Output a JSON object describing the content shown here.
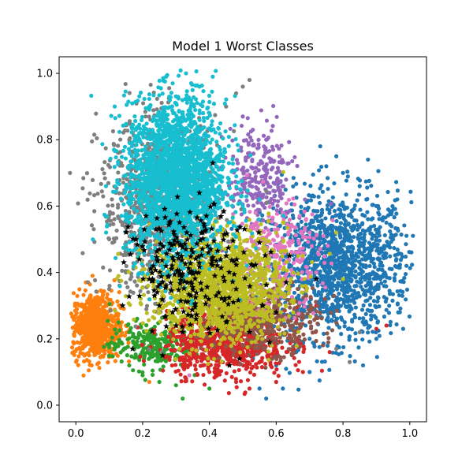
{
  "chart_data": {
    "type": "scatter",
    "title": "Model 1 Worst Classes",
    "xlabel": "",
    "ylabel": "",
    "xlim": [
      -0.05,
      1.05
    ],
    "ylim": [
      -0.05,
      1.05
    ],
    "xticks": [
      "0.0",
      "0.2",
      "0.4",
      "0.6",
      "0.8",
      "1.0"
    ],
    "yticks": [
      "0.0",
      "0.2",
      "0.4",
      "0.6",
      "0.8",
      "1.0"
    ],
    "grid": false,
    "legend": "none",
    "series": [
      {
        "color": "#1f77b4",
        "marker": "circle",
        "center": [
          0.78,
          0.42
        ],
        "spread": [
          0.11,
          0.11
        ],
        "points": [
          [
            0.99,
            0.42
          ],
          [
            0.98,
            0.23
          ],
          [
            0.96,
            0.44
          ],
          [
            0.95,
            0.5
          ],
          [
            0.93,
            0.55
          ],
          [
            0.92,
            0.45
          ],
          [
            0.9,
            0.6
          ],
          [
            0.87,
            0.62
          ],
          [
            0.85,
            0.66
          ],
          [
            0.82,
            0.3
          ],
          [
            0.8,
            0.7
          ],
          [
            0.78,
            0.75
          ],
          [
            0.75,
            0.72
          ],
          [
            0.72,
            0.27
          ],
          [
            0.7,
            0.2
          ],
          [
            0.66,
            0.16
          ],
          [
            0.6,
            0.12
          ],
          [
            0.55,
            0.05
          ],
          [
            0.57,
            0.02
          ],
          [
            0.62,
            0.05
          ],
          [
            0.7,
            0.1
          ],
          [
            0.86,
            0.12
          ],
          [
            0.9,
            0.2
          ],
          [
            0.88,
            0.35
          ]
        ]
      },
      {
        "color": "#ff7f0e",
        "marker": "circle",
        "center": [
          0.06,
          0.24
        ],
        "spread": [
          0.035,
          0.05
        ],
        "points": [
          [
            0.0,
            0.24
          ],
          [
            0.01,
            0.3
          ],
          [
            0.03,
            0.37
          ],
          [
            0.05,
            0.39
          ],
          [
            0.12,
            0.2
          ],
          [
            0.15,
            0.24
          ],
          [
            0.04,
            0.15
          ],
          [
            0.1,
            0.16
          ],
          [
            0.22,
            0.07
          ]
        ]
      },
      {
        "color": "#2ca02c",
        "marker": "circle",
        "center": [
          0.22,
          0.18
        ],
        "spread": [
          0.06,
          0.035
        ],
        "points": [
          [
            0.16,
            0.12
          ],
          [
            0.2,
            0.09
          ],
          [
            0.25,
            0.07
          ],
          [
            0.3,
            0.06
          ],
          [
            0.32,
            0.02
          ],
          [
            0.4,
            0.05
          ],
          [
            0.16,
            0.22
          ],
          [
            0.13,
            0.19
          ]
        ]
      },
      {
        "color": "#d62728",
        "marker": "circle",
        "center": [
          0.45,
          0.19
        ],
        "spread": [
          0.09,
          0.05
        ],
        "points": [
          [
            0.33,
            0.08
          ],
          [
            0.4,
            0.1
          ],
          [
            0.48,
            0.07
          ],
          [
            0.52,
            0.05
          ],
          [
            0.6,
            0.07
          ],
          [
            0.68,
            0.1
          ],
          [
            0.76,
            0.16
          ],
          [
            0.9,
            0.23
          ],
          [
            0.93,
            0.24
          ],
          [
            0.72,
            0.3
          ]
        ]
      },
      {
        "color": "#9467bd",
        "marker": "circle",
        "center": [
          0.55,
          0.68
        ],
        "spread": [
          0.05,
          0.08
        ],
        "points": [
          [
            0.5,
            0.87
          ],
          [
            0.53,
            0.83
          ],
          [
            0.57,
            0.8
          ],
          [
            0.61,
            0.75
          ],
          [
            0.58,
            0.64
          ],
          [
            0.6,
            0.67
          ],
          [
            0.63,
            0.58
          ],
          [
            0.52,
            0.76
          ]
        ]
      },
      {
        "color": "#8c564b",
        "marker": "circle",
        "center": [
          0.55,
          0.26
        ],
        "spread": [
          0.09,
          0.05
        ],
        "points": [
          [
            0.4,
            0.3
          ],
          [
            0.48,
            0.22
          ],
          [
            0.6,
            0.2
          ],
          [
            0.66,
            0.22
          ],
          [
            0.7,
            0.25
          ]
        ]
      },
      {
        "color": "#e377c2",
        "marker": "circle",
        "center": [
          0.6,
          0.45
        ],
        "spread": [
          0.07,
          0.08
        ],
        "points": [
          [
            0.62,
            0.58
          ],
          [
            0.67,
            0.57
          ],
          [
            0.72,
            0.4
          ],
          [
            0.7,
            0.52
          ],
          [
            0.54,
            0.27
          ],
          [
            0.34,
            0.09
          ],
          [
            0.55,
            0.36
          ]
        ]
      },
      {
        "color": "#7f7f7f",
        "marker": "circle",
        "center": [
          0.25,
          0.6
        ],
        "spread": [
          0.09,
          0.13
        ],
        "points": [
          [
            0.52,
            0.98
          ],
          [
            0.48,
            0.94
          ],
          [
            0.5,
            0.96
          ],
          [
            0.45,
            0.9
          ],
          [
            0.4,
            0.88
          ],
          [
            0.14,
            0.55
          ],
          [
            0.1,
            0.5
          ],
          [
            0.12,
            0.64
          ],
          [
            0.16,
            0.8
          ],
          [
            0.22,
            0.82
          ],
          [
            0.1,
            0.35
          ],
          [
            0.15,
            0.4
          ],
          [
            0.78,
            0.17
          ],
          [
            0.82,
            0.13
          ],
          [
            0.85,
            0.22
          ]
        ]
      },
      {
        "color": "#bcbd22",
        "marker": "circle",
        "center": [
          0.43,
          0.36
        ],
        "spread": [
          0.1,
          0.08
        ],
        "points": [
          [
            0.3,
            0.22
          ],
          [
            0.37,
            0.28
          ],
          [
            0.46,
            0.32
          ],
          [
            0.5,
            0.38
          ],
          [
            0.56,
            0.4
          ],
          [
            0.6,
            0.52
          ],
          [
            0.62,
            0.55
          ],
          [
            0.68,
            0.45
          ],
          [
            0.78,
            0.52
          ],
          [
            0.8,
            0.38
          ]
        ]
      },
      {
        "color": "#17becf",
        "marker": "circle",
        "center": [
          0.3,
          0.68
        ],
        "spread": [
          0.075,
          0.12
        ],
        "points": [
          [
            0.33,
            1.0
          ],
          [
            0.29,
            0.97
          ],
          [
            0.41,
            0.99
          ],
          [
            0.37,
            0.96
          ],
          [
            0.28,
            0.93
          ],
          [
            0.3,
            0.91
          ],
          [
            0.22,
            0.9
          ],
          [
            0.18,
            0.83
          ],
          [
            0.19,
            0.82
          ],
          [
            0.3,
            0.45
          ],
          [
            0.4,
            0.41
          ],
          [
            0.5,
            0.6
          ],
          [
            0.55,
            0.62
          ]
        ]
      },
      {
        "color": "#000000",
        "marker": "star",
        "center": [
          0.35,
          0.42
        ],
        "spread": [
          0.07,
          0.07
        ],
        "points": [
          [
            0.41,
            0.73
          ],
          [
            0.37,
            0.64
          ],
          [
            0.21,
            0.57
          ],
          [
            0.24,
            0.53
          ],
          [
            0.18,
            0.5
          ],
          [
            0.28,
            0.55
          ],
          [
            0.33,
            0.47
          ],
          [
            0.38,
            0.52
          ],
          [
            0.45,
            0.45
          ],
          [
            0.53,
            0.42
          ],
          [
            0.22,
            0.38
          ],
          [
            0.25,
            0.3
          ],
          [
            0.29,
            0.28
          ],
          [
            0.3,
            0.24
          ],
          [
            0.32,
            0.22
          ],
          [
            0.36,
            0.26
          ],
          [
            0.45,
            0.25
          ],
          [
            0.52,
            0.22
          ],
          [
            0.56,
            0.3
          ],
          [
            0.58,
            0.19
          ],
          [
            0.49,
            0.14
          ],
          [
            0.46,
            0.12
          ],
          [
            0.26,
            0.15
          ],
          [
            0.17,
            0.17
          ],
          [
            0.14,
            0.3
          ],
          [
            0.63,
            0.37
          ],
          [
            0.6,
            0.28
          ],
          [
            0.72,
            0.38
          ],
          [
            0.64,
            0.45
          ],
          [
            0.55,
            0.49
          ],
          [
            0.48,
            0.35
          ],
          [
            0.42,
            0.33
          ],
          [
            0.36,
            0.4
          ],
          [
            0.27,
            0.36
          ],
          [
            0.19,
            0.44
          ]
        ]
      }
    ]
  }
}
